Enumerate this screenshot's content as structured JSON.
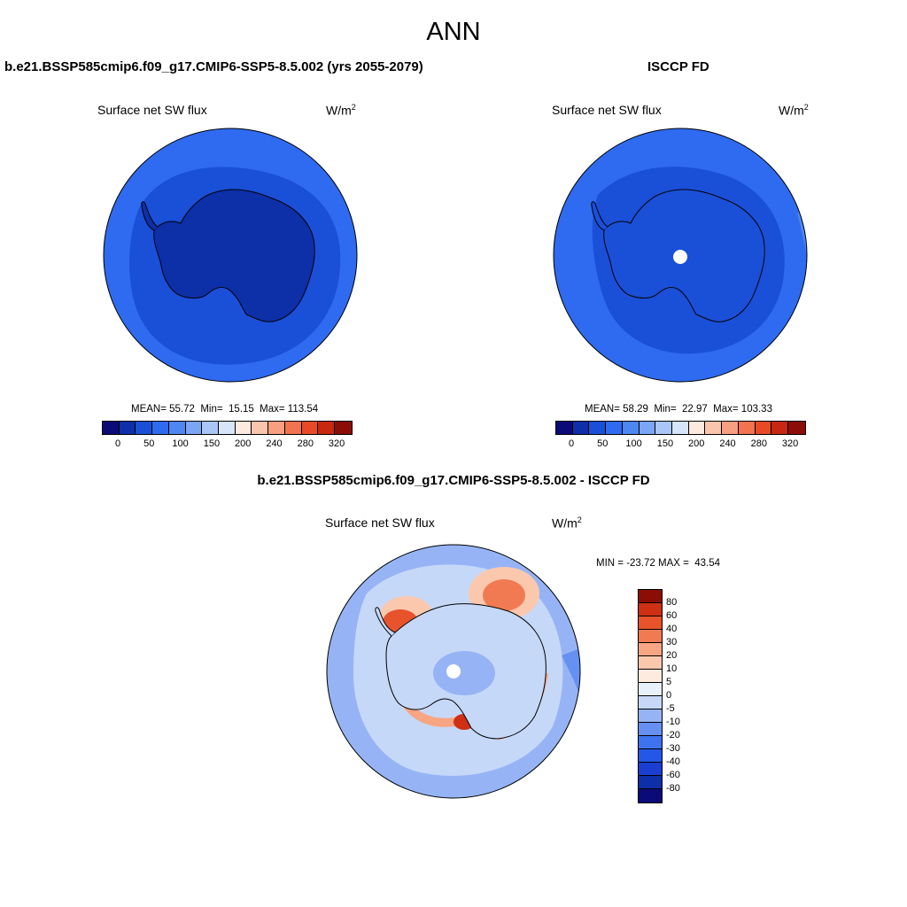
{
  "header": {
    "title": "ANN"
  },
  "palette_abs": [
    "#0a0a78",
    "#0d2fa8",
    "#1a4fd8",
    "#2f6bf0",
    "#4e86f2",
    "#7aa6f5",
    "#a9c6f7",
    "#d6e5fa",
    "#fde9dd",
    "#fbc5ad",
    "#f79f80",
    "#f2734f",
    "#e84a27",
    "#c8280f",
    "#8c0d05"
  ],
  "palette_diff": [
    "#0a0a78",
    "#0d2fa8",
    "#1a3fd0",
    "#2457e8",
    "#3f72ef",
    "#6690f2",
    "#96b4f5",
    "#c6d8f8",
    "#e8f0fb",
    "#fdebe0",
    "#fbc8ae",
    "#f8a583",
    "#f27a52",
    "#e8532c",
    "#cf3014",
    "#8c0d05"
  ],
  "panels": [
    {
      "title": "b.e21.BSSP585cmip6.f09_g17.CMIP6-SSP5-8.5.002 (yrs 2055-2079)",
      "variable": "Surface net SW flux",
      "units_base": "W/m",
      "units_exp": "2",
      "mean_label": "MEAN=",
      "mean": "55.72",
      "min_label": "Min=",
      "min": "15.15",
      "max_label": "Max=",
      "max": "113.54",
      "colorbar_ticks": [
        "0",
        "50",
        "100",
        "150",
        "200",
        "240",
        "280",
        "320"
      ]
    },
    {
      "title": "ISCCP FD",
      "variable": "Surface net SW flux",
      "units_base": "W/m",
      "units_exp": "2",
      "mean_label": "MEAN=",
      "mean": "58.29",
      "min_label": "Min=",
      "min": "22.97",
      "max_label": "Max=",
      "max": "103.33",
      "colorbar_ticks": [
        "0",
        "50",
        "100",
        "150",
        "200",
        "240",
        "280",
        "320"
      ]
    }
  ],
  "diff": {
    "title": "b.e21.BSSP585cmip6.f09_g17.CMIP6-SSP5-8.5.002 - ISCCP FD",
    "variable": "Surface net SW flux",
    "units_base": "W/m",
    "units_exp": "2",
    "min_label": "MIN =",
    "min": "-23.72",
    "max_label": "MAX =",
    "max": "43.54",
    "colorbar_ticks": [
      "80",
      "60",
      "40",
      "30",
      "20",
      "10",
      "5",
      "0",
      "-5",
      "-10",
      "-20",
      "-30",
      "-40",
      "-60",
      "-80"
    ]
  }
}
